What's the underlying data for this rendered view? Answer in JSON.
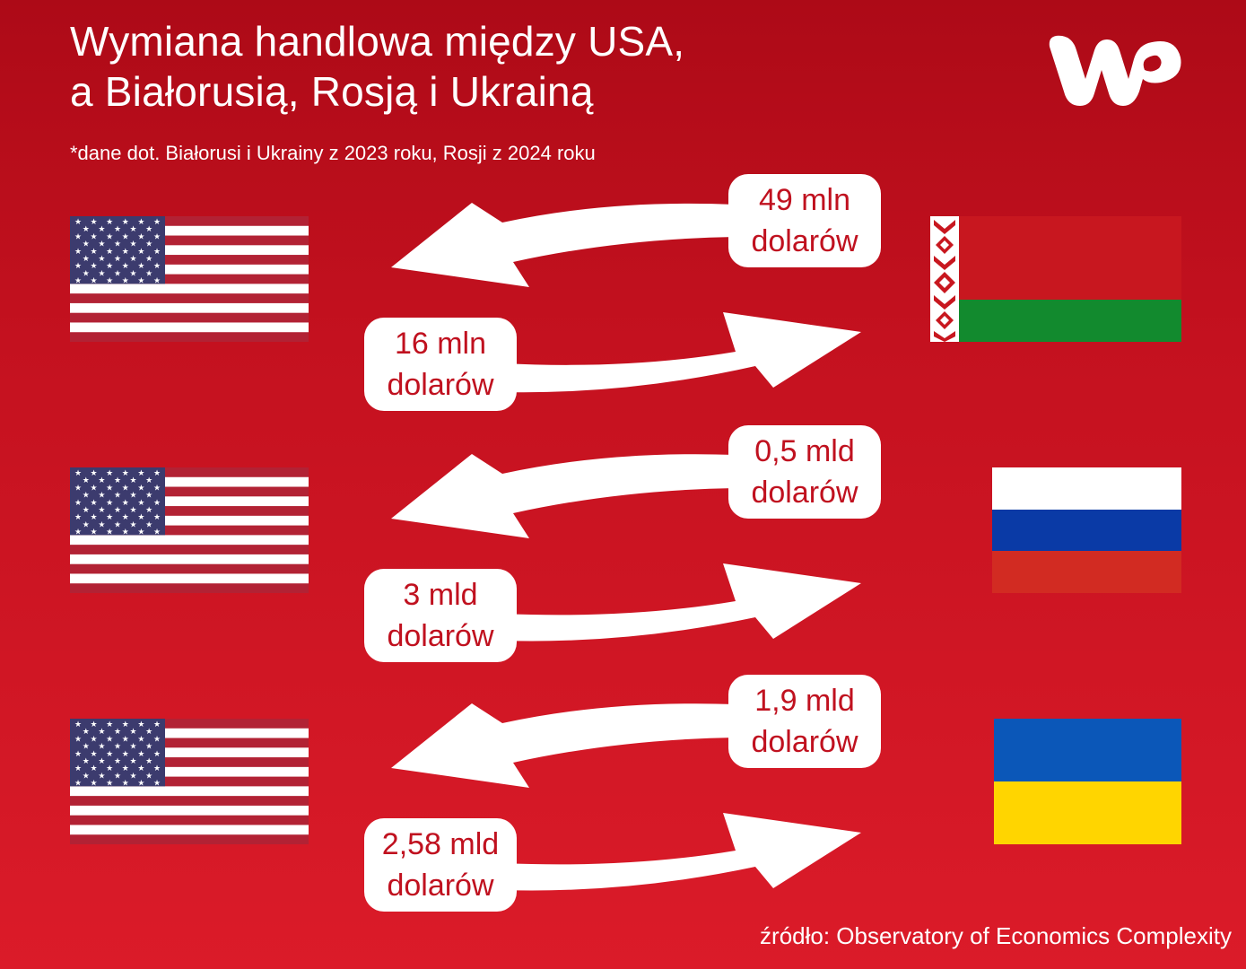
{
  "header": {
    "title_line1": "Wymiana handlowa między USA,",
    "title_line2": "a Białorusią, Rosją i Ukrainą",
    "subtitle": "*dane dot. Białorusi i Ukrainy z 2023 roku, Rosji z 2024 roku"
  },
  "logo": {
    "icon": "wp-logo-icon"
  },
  "colors": {
    "background": "#c4111f",
    "pill_text": "#c0111f",
    "arrow": "#ffffff"
  },
  "rows": [
    {
      "country": "Belarus",
      "to_usa": {
        "value": "49 mln",
        "unit": "dolarów"
      },
      "from_usa": {
        "value": "16 mln",
        "unit": "dolarów"
      }
    },
    {
      "country": "Russia",
      "to_usa": {
        "value": "0,5 mld",
        "unit": "dolarów"
      },
      "from_usa": {
        "value": "3 mld",
        "unit": "dolarów"
      }
    },
    {
      "country": "Ukraine",
      "to_usa": {
        "value": "1,9 mld",
        "unit": "dolarów"
      },
      "from_usa": {
        "value": "2,58 mld",
        "unit": "dolarów"
      }
    }
  ],
  "footer": {
    "source": "źródło: Observatory of Economics Complexity"
  }
}
